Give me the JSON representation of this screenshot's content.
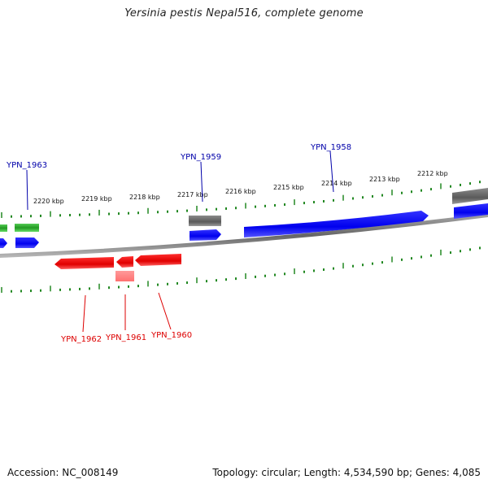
{
  "title": "Yersinia pestis Nepal516, complete genome",
  "accession": "Accession: NC_008149",
  "summary": "Topology: circular; Length: 4,534,590 bp; Genes: 4,085",
  "colors": {
    "forward": "#0000ff",
    "reverse": "#ff0000",
    "reverse_light": "#ff8080",
    "rna": "#33aa33",
    "other": "#707070",
    "backbone": "#888888",
    "tick": "#228822"
  },
  "tick_labels": [
    "2220 kbp",
    "2219 kbp",
    "2218 kbp",
    "2217 kbp",
    "2216 kbp",
    "2215 kbp",
    "2214 kbp",
    "2213 kbp",
    "2212 kbp"
  ],
  "genes": {
    "forward_labels": [
      "YPN_1963",
      "YPN_1959",
      "YPN_1958"
    ],
    "reverse_labels": [
      "YPN_1962",
      "YPN_1961",
      "YPN_1960"
    ]
  }
}
